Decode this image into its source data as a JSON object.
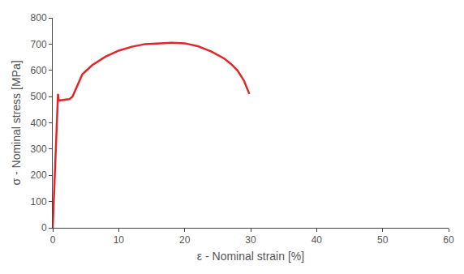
{
  "chart_data": {
    "type": "line",
    "x_label": "ε - Nominal strain [%]",
    "y_label": "σ - Nominal stress [MPa]",
    "series": [
      {
        "color": "#e0262b",
        "line_style": "solid",
        "x": [
          0,
          0.3,
          0.6,
          0.8,
          0.9,
          1.5,
          2.5,
          3,
          4,
          4.5,
          6,
          8,
          10,
          12,
          14,
          16,
          18,
          20,
          22,
          24,
          26,
          27,
          28,
          29,
          29.8
        ],
        "values": [
          0,
          200,
          420,
          510,
          485,
          487,
          490,
          500,
          560,
          585,
          620,
          652,
          675,
          690,
          700,
          703,
          705,
          703,
          692,
          672,
          645,
          625,
          600,
          560,
          510
        ]
      }
    ],
    "xlim": [
      0,
      60
    ],
    "xticks": [
      0,
      10,
      20,
      30,
      40,
      50,
      60
    ],
    "ylim": [
      0,
      800
    ],
    "yticks": [
      0,
      100,
      200,
      300,
      400,
      500,
      600,
      700,
      800
    ],
    "grid": false
  }
}
